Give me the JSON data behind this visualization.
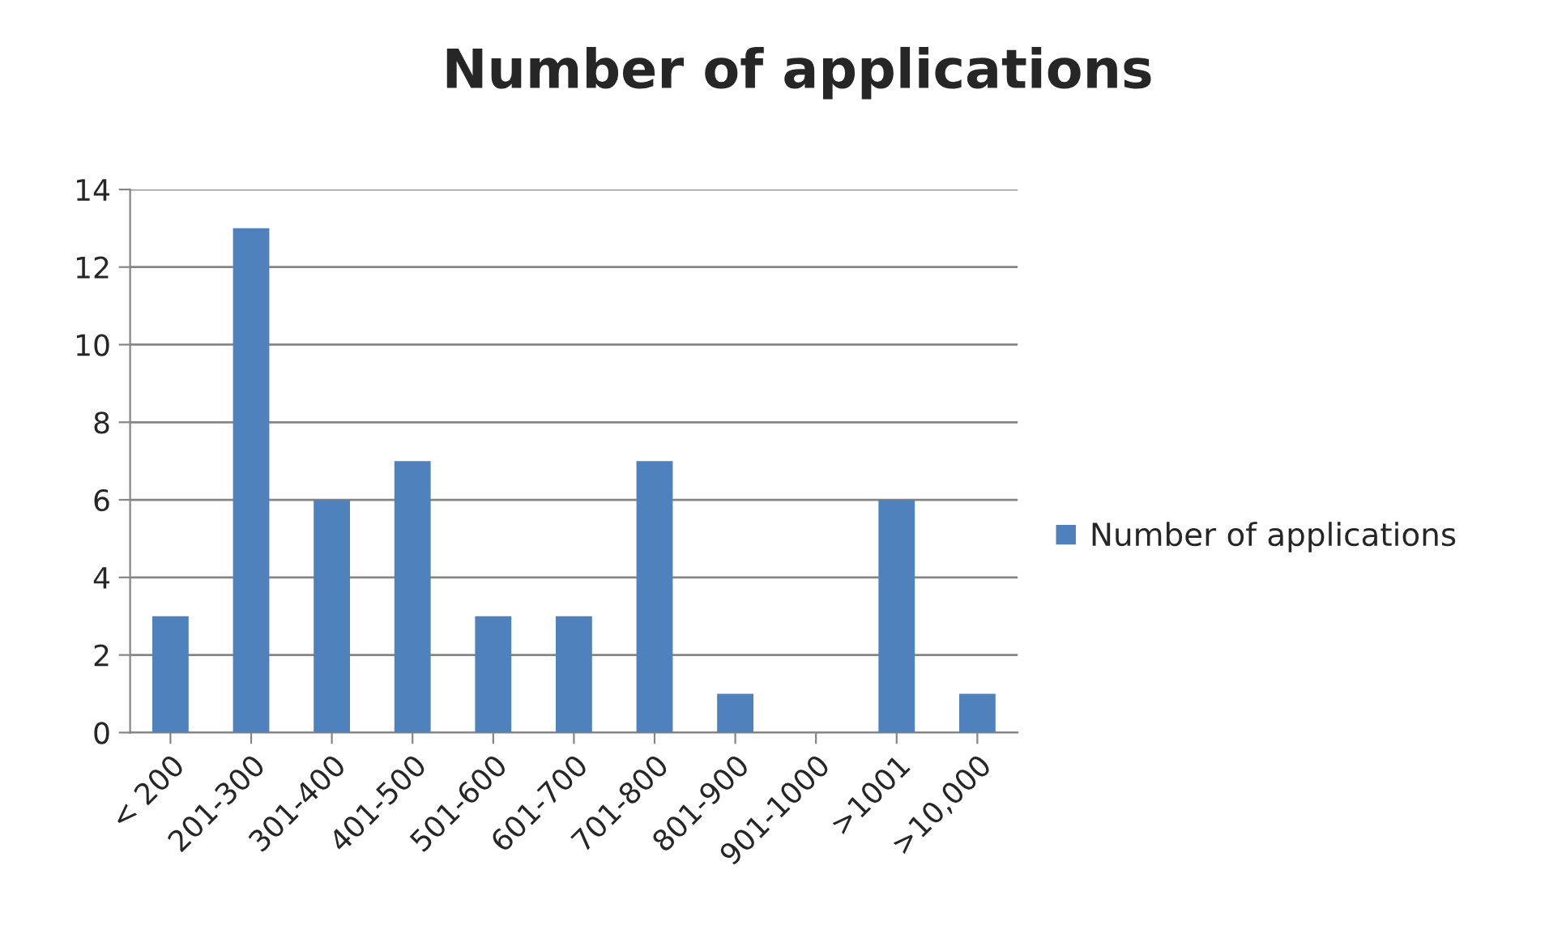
{
  "chart_data": {
    "type": "bar",
    "title": "Number of applications",
    "categories": [
      "< 200",
      "201-300",
      "301-400",
      "401-500",
      "501-600",
      "601-700",
      "701-800",
      "801-900",
      "901-1000",
      ">1001",
      ">10,000"
    ],
    "series": [
      {
        "name": "Number of applications",
        "color": "#4f81bd",
        "values": [
          3,
          13,
          6,
          7,
          3,
          3,
          7,
          1,
          0,
          6,
          1
        ]
      }
    ],
    "ylim": [
      0,
      14
    ],
    "yticks": [
      0,
      2,
      4,
      6,
      8,
      10,
      12,
      14
    ],
    "grid": "y",
    "legend": "right"
  }
}
